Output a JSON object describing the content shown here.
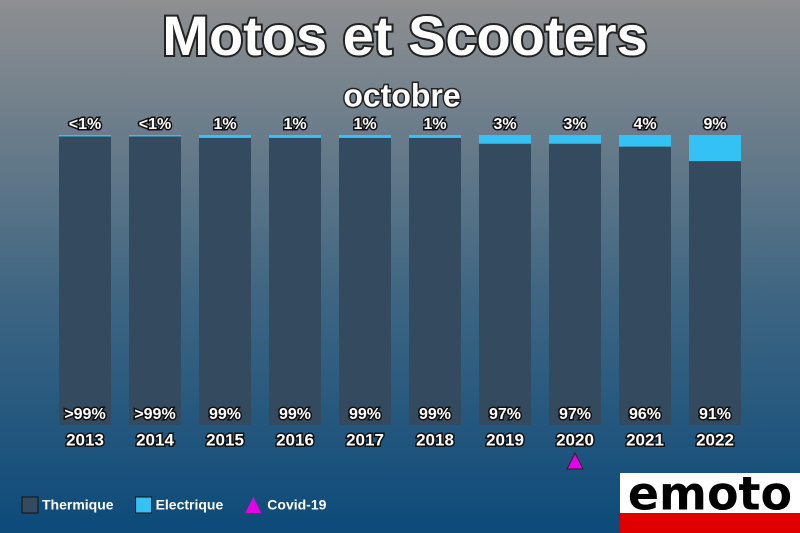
{
  "chart_data": {
    "type": "stacked_bar_percent",
    "title": "Motos et Scooters",
    "subtitle": "octobre",
    "categories": [
      "2013",
      "2014",
      "2015",
      "2016",
      "2017",
      "2018",
      "2019",
      "2020",
      "2021",
      "2022"
    ],
    "series": [
      {
        "name": "Thermique",
        "color": "#334a5f",
        "values": [
          99.5,
          99.5,
          99,
          99,
          99,
          99,
          97,
          97,
          96,
          91
        ],
        "value_labels": [
          ">99%",
          ">99%",
          "99%",
          "99%",
          "99%",
          "99%",
          "97%",
          "97%",
          "96%",
          "91%"
        ]
      },
      {
        "name": "Electrique",
        "color": "#33c2f3",
        "values": [
          0.5,
          0.5,
          1,
          1,
          1,
          1,
          3,
          3,
          4,
          9
        ],
        "value_labels": [
          "<1%",
          "<1%",
          "1%",
          "1%",
          "1%",
          "1%",
          "3%",
          "3%",
          "4%",
          "9%"
        ]
      }
    ],
    "annotation": {
      "text": "Covid-19",
      "category": "2020",
      "color": "#e600e6"
    },
    "logo": "emoto"
  }
}
